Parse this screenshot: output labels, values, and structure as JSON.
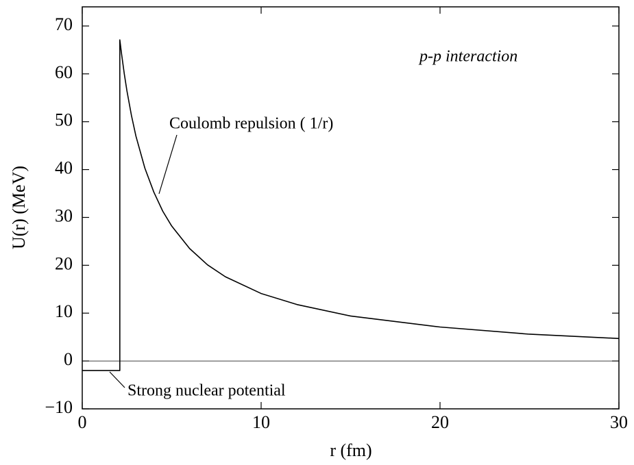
{
  "chart_data": {
    "type": "line",
    "xlabel": "r (fm)",
    "ylabel": "U(r) (MeV)",
    "xlim": [
      0,
      30
    ],
    "ylim": [
      -10,
      74
    ],
    "xticks": [
      0,
      10,
      20,
      30
    ],
    "yticks": [
      {
        "value": -10,
        "label": "−10"
      },
      0,
      10,
      20,
      30,
      40,
      50,
      60,
      70
    ],
    "reference_line": 0,
    "series": [
      {
        "name": "U(r)",
        "color": "#000000",
        "x": [
          0,
          2.1,
          2.1,
          2.2,
          2.35,
          2.5,
          2.75,
          3,
          3.5,
          4,
          4.5,
          5,
          6,
          7,
          8,
          10,
          12,
          15,
          20,
          25,
          30
        ],
        "values": [
          -2,
          -2,
          67.1,
          64.1,
          60,
          56.4,
          51.3,
          47,
          40.3,
          35.3,
          31.3,
          28.2,
          23.5,
          20.1,
          17.6,
          14.1,
          11.8,
          9.4,
          7.1,
          5.6,
          4.7
        ]
      }
    ],
    "annotations": [
      "p-p interaction",
      "Coulomb repulsion ( 1/r)",
      "Strong nuclear potential"
    ]
  }
}
